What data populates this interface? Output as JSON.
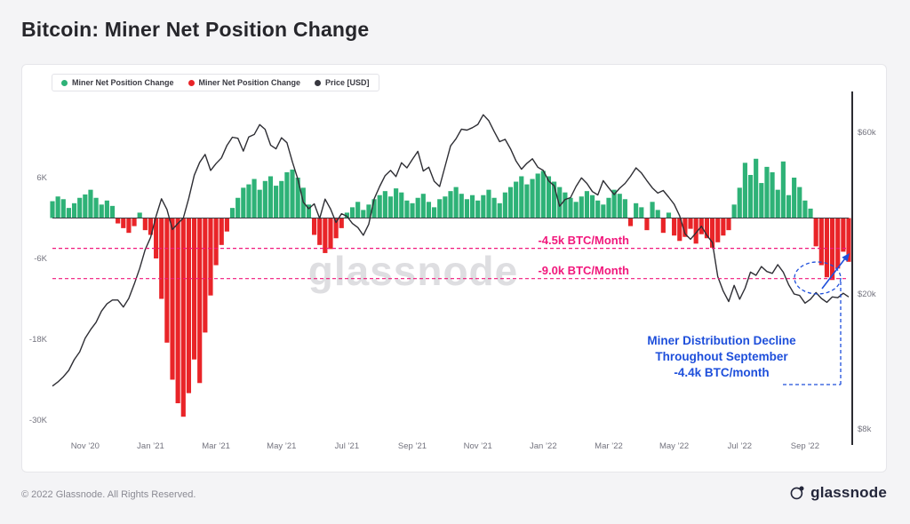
{
  "page": {
    "title": "Bitcoin: Miner Net Position Change",
    "footer_left": "© 2022 Glassnode. All Rights Reserved.",
    "footer_logo": "glassnode"
  },
  "watermark": "glassnode",
  "legend": {
    "items": [
      {
        "label": "Miner Net Position Change",
        "color": "#2eb277"
      },
      {
        "label": "Miner Net Position Change",
        "color": "#e92428"
      },
      {
        "label": "Price [USD]",
        "color": "#37373f"
      }
    ]
  },
  "annotations": {
    "pink_color": "#f1187c",
    "blue_color": "#1e4fdb",
    "line1_label": "-4.5k BTC/Month",
    "line1_value": -4.5,
    "line2_label": "-9.0k BTC/Month",
    "line2_value": -9.0,
    "callout": {
      "lines": [
        "Miner Distribution Decline",
        "Throughout September",
        "-4.4k BTC/month"
      ]
    }
  },
  "chart_data": {
    "type": "bar+line",
    "title": "Bitcoin: Miner Net Position Change",
    "x_range": "Oct 2020 – Oct 2022, 5-day samples",
    "x_ticks": [
      "Nov ’20",
      "Jan ’21",
      "Mar ’21",
      "May ’21",
      "Jul ’21",
      "Sep ’21",
      "Nov ’21",
      "Jan ’22",
      "Mar ’22",
      "May ’22",
      "Jul ’22",
      "Sep ’22"
    ],
    "left_axis": {
      "unit": "BTC (thousands)",
      "ticks": [
        "6K",
        "-6K",
        "-18K",
        "-30K"
      ],
      "tick_values": [
        6,
        -6,
        -18,
        -30
      ],
      "range": [
        -32,
        9
      ],
      "scale": "linear"
    },
    "right_axis": {
      "unit": "USD (thousands)",
      "ticks": [
        "$60k",
        "$20k",
        "$8k"
      ],
      "tick_values": [
        60,
        20,
        8
      ],
      "range": [
        8,
        75
      ],
      "scale": "log"
    },
    "grid": false,
    "legend_position": "top-left",
    "series": [
      {
        "name": "Miner Net Position Change",
        "type": "bar",
        "unit": "K BTC / month",
        "positive_color": "#2eb277",
        "negative_color": "#e92428",
        "values": [
          2.5,
          3.2,
          2.8,
          1.5,
          2.2,
          3.0,
          3.5,
          4.2,
          3.0,
          2.0,
          2.6,
          1.8,
          -0.8,
          -1.5,
          -2.2,
          -1.2,
          0.8,
          -1.8,
          -2.5,
          -6.0,
          -12.0,
          -18.5,
          -24.0,
          -27.5,
          -29.5,
          -26.0,
          -21.0,
          -24.5,
          -17.0,
          -11.5,
          -7.0,
          -4.0,
          -2.0,
          1.5,
          3.0,
          4.5,
          5.0,
          5.8,
          4.2,
          5.5,
          6.2,
          4.8,
          5.5,
          6.8,
          7.2,
          6.0,
          4.5,
          2.0,
          -2.5,
          -4.0,
          -5.2,
          -4.6,
          -3.0,
          -1.5,
          0.8,
          1.6,
          2.4,
          1.2,
          2.0,
          2.8,
          3.4,
          4.0,
          3.2,
          4.4,
          3.8,
          2.6,
          2.2,
          3.0,
          3.6,
          2.4,
          1.6,
          2.8,
          3.2,
          4.0,
          4.6,
          3.6,
          2.8,
          3.4,
          2.6,
          3.4,
          4.2,
          3.0,
          2.2,
          3.8,
          4.6,
          5.4,
          6.2,
          5.0,
          5.8,
          6.6,
          7.0,
          6.2,
          5.4,
          4.6,
          3.8,
          3.0,
          2.4,
          3.2,
          4.0,
          3.4,
          2.6,
          2.0,
          3.0,
          4.2,
          3.6,
          2.8,
          -1.2,
          2.2,
          1.6,
          -1.8,
          2.4,
          1.2,
          -2.2,
          0.8,
          -2.6,
          -3.4,
          -2.8,
          -1.6,
          -3.8,
          -2.4,
          -3.0,
          -4.4,
          -3.6,
          -2.6,
          -1.8,
          2.0,
          4.5,
          8.2,
          6.4,
          8.8,
          5.2,
          7.6,
          6.8,
          4.2,
          8.4,
          3.4,
          6.0,
          4.6,
          2.6,
          1.4,
          -4.2,
          -7.0,
          -8.8,
          -9.2,
          -7.5,
          -5.0,
          -6.5
        ]
      },
      {
        "name": "Price [USD]",
        "type": "line",
        "unit": "K USD",
        "color": "#2e2e34",
        "values": [
          10.7,
          11.0,
          11.4,
          11.9,
          12.8,
          13.5,
          14.8,
          15.7,
          16.5,
          17.8,
          18.7,
          19.2,
          19.2,
          18.3,
          19.4,
          21.4,
          23.8,
          27.0,
          29.4,
          33.9,
          38.2,
          35.5,
          31.0,
          32.3,
          33.5,
          38.3,
          44.8,
          48.9,
          51.6,
          46.3,
          48.5,
          50.4,
          54.9,
          58.0,
          57.6,
          52.8,
          58.1,
          59.1,
          63.2,
          61.2,
          55.0,
          53.6,
          57.8,
          55.9,
          49.1,
          43.6,
          37.3,
          35.7,
          36.9,
          33.4,
          38.1,
          35.6,
          32.5,
          34.5,
          33.9,
          32.3,
          31.4,
          29.8,
          32.1,
          38.2,
          41.5,
          44.7,
          46.3,
          44.4,
          48.8,
          47.1,
          49.9,
          52.7,
          46.1,
          47.3,
          43.0,
          41.5,
          47.7,
          54.7,
          57.4,
          61.3,
          60.9,
          61.9,
          63.3,
          67.6,
          64.9,
          60.3,
          56.3,
          57.2,
          53.6,
          49.4,
          46.7,
          48.6,
          50.1,
          47.3,
          46.3,
          43.1,
          41.7,
          36.3,
          38.0,
          38.5,
          41.5,
          44.0,
          42.4,
          40.1,
          39.2,
          43.2,
          41.1,
          39.3,
          41.0,
          42.4,
          44.5,
          47.1,
          45.5,
          43.2,
          41.1,
          39.7,
          40.4,
          38.6,
          36.8,
          34.0,
          30.1,
          29.0,
          30.3,
          31.7,
          29.8,
          28.4,
          22.5,
          20.4,
          19.0,
          21.2,
          19.3,
          20.8,
          23.2,
          22.7,
          24.1,
          23.3,
          23.0,
          24.4,
          23.2,
          21.3,
          20.0,
          19.8,
          18.8,
          19.3,
          20.2,
          19.4,
          18.9,
          19.6,
          19.5,
          20.1,
          19.6
        ]
      }
    ]
  }
}
